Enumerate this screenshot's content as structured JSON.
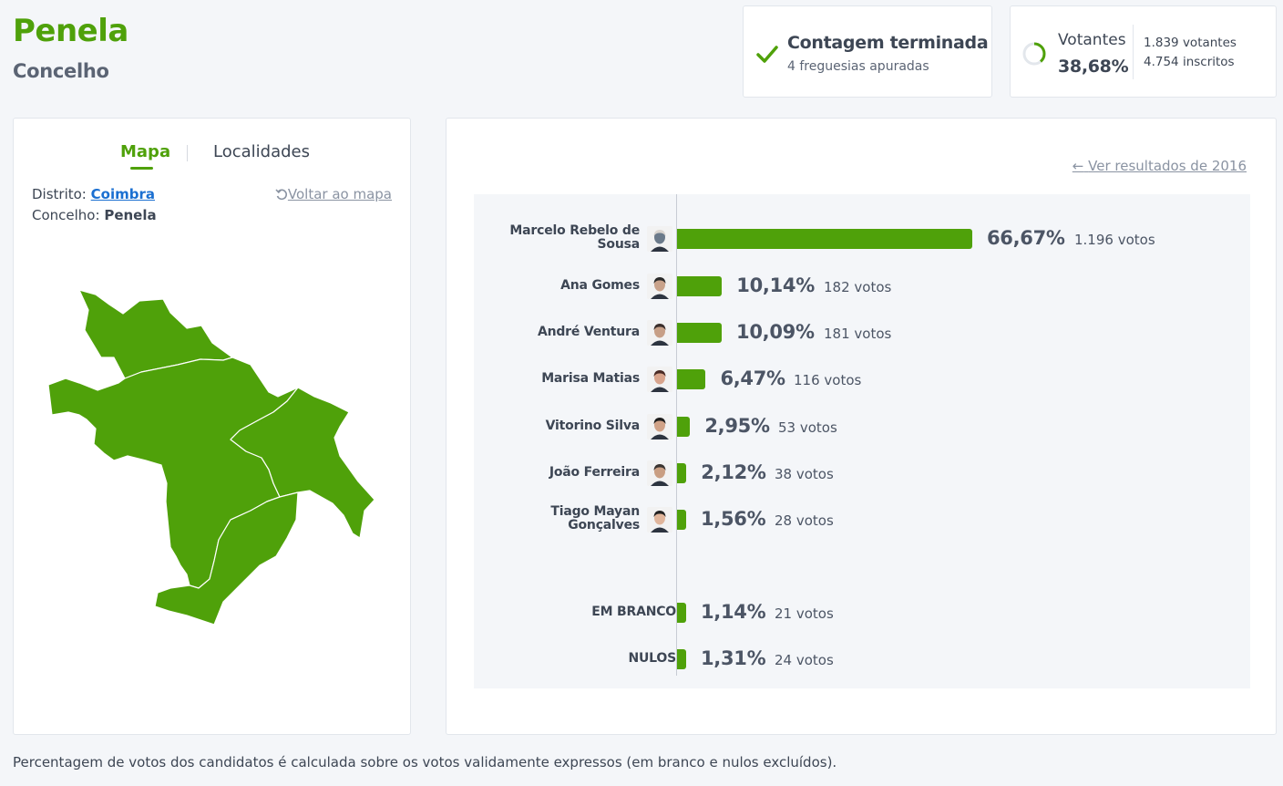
{
  "header": {
    "title": "Penela",
    "subtitle": "Concelho"
  },
  "status": {
    "title": "Contagem terminada",
    "subtitle": "4 freguesias apuradas",
    "icon": "check-icon"
  },
  "voters": {
    "label": "Votantes",
    "percent": "38,68%",
    "percent_value": 0.3868,
    "voters_text": "1.839 votantes",
    "registered_text": "4.754 inscritos"
  },
  "map_panel": {
    "tabs": {
      "map": "Mapa",
      "localities": "Localidades",
      "active": "map"
    },
    "district_label": "Distrito:",
    "district_value": "Coimbra",
    "municipality_label": "Concelho:",
    "municipality_value": "Penela",
    "back_to_map": "Voltar ao mapa",
    "fill_color": "#4fa10a"
  },
  "results": {
    "previous_link": "Ver resultados de 2016",
    "bar_color": "#4fa10a",
    "candidates": [
      {
        "name": "Marcelo Rebelo de Sousa",
        "percent": "66,67%",
        "votes": "1.196 votos",
        "value": 66.67
      },
      {
        "name": "Ana Gomes",
        "percent": "10,14%",
        "votes": "182 votos",
        "value": 10.14
      },
      {
        "name": "André Ventura",
        "percent": "10,09%",
        "votes": "181 votos",
        "value": 10.09
      },
      {
        "name": "Marisa Matias",
        "percent": "6,47%",
        "votes": "116 votos",
        "value": 6.47
      },
      {
        "name": "Vitorino Silva",
        "percent": "2,95%",
        "votes": "53 votos",
        "value": 2.95
      },
      {
        "name": "João Ferreira",
        "percent": "2,12%",
        "votes": "38 votos",
        "value": 2.12
      },
      {
        "name": "Tiago Mayan Gonçalves",
        "percent": "1,56%",
        "votes": "28 votos",
        "value": 1.56
      }
    ],
    "others": [
      {
        "name": "EM BRANCO",
        "percent": "1,14%",
        "votes": "21 votos",
        "value": 1.14
      },
      {
        "name": "NULOS",
        "percent": "1,31%",
        "votes": "24 votos",
        "value": 1.31
      }
    ]
  },
  "footnote": "Percentagem de votos dos candidatos é calculada sobre os votos validamente expressos (em branco e nulos excluídos)."
}
